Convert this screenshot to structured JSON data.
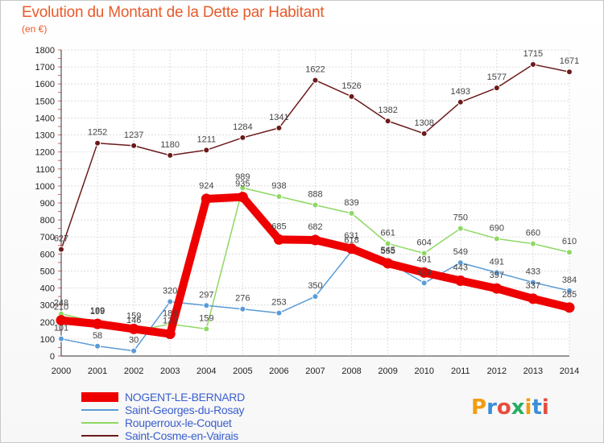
{
  "chart_data": {
    "type": "line",
    "title": "Evolution du Montant de la Dette par Habitant",
    "unit_label": "(en €)",
    "x": [
      "2000",
      "2001",
      "2002",
      "2003",
      "2004",
      "2005",
      "2006",
      "2007",
      "2008",
      "2009",
      "2010",
      "2011",
      "2012",
      "2013",
      "2014"
    ],
    "ylim": [
      0,
      1800
    ],
    "yticks": [
      0,
      100,
      200,
      300,
      400,
      500,
      600,
      700,
      800,
      900,
      1000,
      1100,
      1200,
      1300,
      1400,
      1500,
      1600,
      1700,
      1800
    ],
    "grid": true,
    "legend_position": "bottom-left",
    "series": [
      {
        "name": "Saint-Cosme-en-Vairais",
        "color": "#6b1a1a",
        "values": [
          627,
          1252,
          1237,
          1180,
          1211,
          1284,
          1341,
          1622,
          1526,
          1382,
          1308,
          1493,
          1577,
          1715,
          1671
        ]
      },
      {
        "name": "Rouperroux-le-Coquet",
        "color": "#8ed863",
        "values": [
          248,
          199,
          146,
          188,
          159,
          989,
          938,
          888,
          839,
          661,
          604,
          750,
          690,
          660,
          610
        ]
      },
      {
        "name": "Saint-Georges-du-Rosay",
        "color": "#5a9bd5",
        "values": [
          101,
          58,
          30,
          320,
          297,
          276,
          253,
          350,
          618,
          555,
          429,
          549,
          491,
          433,
          384
        ]
      },
      {
        "name": "NOGENT-LE-BERNARD",
        "color": "#ee0000",
        "values": [
          210,
          189,
          159,
          130,
          924,
          935,
          685,
          682,
          631,
          545,
          491,
          443,
          397,
          337,
          285
        ]
      }
    ]
  },
  "legend": [
    {
      "label": "NOGENT-LE-BERNARD",
      "color": "#ee0000",
      "width": 12
    },
    {
      "label": "Saint-Georges-du-Rosay",
      "color": "#5a9bd5",
      "width": 2
    },
    {
      "label": "Rouperroux-le-Coquet",
      "color": "#8ed863",
      "width": 2
    },
    {
      "label": "Saint-Cosme-en-Vairais",
      "color": "#6b1a1a",
      "width": 2
    }
  ],
  "logo": {
    "text": "Proxiti",
    "colors": [
      "#f39c12",
      "#3a8fd9",
      "#e74c3c",
      "#27ae60",
      "#f39c12",
      "#3a8fd9",
      "#e74c3c"
    ]
  }
}
